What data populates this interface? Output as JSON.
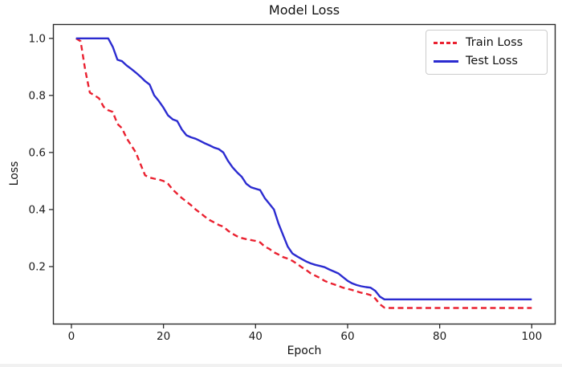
{
  "chart_data": {
    "type": "line",
    "title": "Model Loss",
    "xlabel": "Epoch",
    "ylabel": "Loss",
    "xlim": [
      -4,
      105
    ],
    "ylim": [
      0,
      1.05
    ],
    "x_ticks": [
      0,
      20,
      40,
      60,
      80,
      100
    ],
    "y_ticks": [
      0.2,
      0.4,
      0.6,
      0.8,
      1.0
    ],
    "grid": false,
    "legend_position": "upper right",
    "epochs": {
      "start": 1,
      "end": 100,
      "step": 1
    },
    "series": [
      {
        "name": "Train Loss",
        "color": "#ea2130",
        "style": "dashed",
        "values": [
          1.0,
          0.99,
          0.89,
          0.81,
          0.8,
          0.79,
          0.76,
          0.748,
          0.742,
          0.7,
          0.685,
          0.65,
          0.625,
          0.6,
          0.56,
          0.52,
          0.512,
          0.508,
          0.505,
          0.5,
          0.49,
          0.47,
          0.455,
          0.44,
          0.428,
          0.415,
          0.4,
          0.388,
          0.375,
          0.363,
          0.355,
          0.346,
          0.34,
          0.326,
          0.315,
          0.306,
          0.3,
          0.296,
          0.293,
          0.29,
          0.285,
          0.27,
          0.262,
          0.25,
          0.242,
          0.233,
          0.228,
          0.22,
          0.21,
          0.198,
          0.188,
          0.176,
          0.168,
          0.16,
          0.15,
          0.143,
          0.138,
          0.132,
          0.126,
          0.122,
          0.118,
          0.113,
          0.108,
          0.105,
          0.1,
          0.088,
          0.068,
          0.056,
          0.055,
          0.055,
          0.055,
          0.055,
          0.055,
          0.055,
          0.055,
          0.055,
          0.055,
          0.055,
          0.055,
          0.055,
          0.055,
          0.055,
          0.055,
          0.055,
          0.055,
          0.055,
          0.055,
          0.055,
          0.055,
          0.055,
          0.055,
          0.055,
          0.055,
          0.055,
          0.055,
          0.055,
          0.055,
          0.055,
          0.055,
          0.055
        ]
      },
      {
        "name": "Test Loss",
        "color": "#2b2bd0",
        "style": "solid",
        "values": [
          1.0,
          1.0,
          1.0,
          1.0,
          1.0,
          1.0,
          1.0,
          1.0,
          0.97,
          0.925,
          0.92,
          0.905,
          0.893,
          0.88,
          0.866,
          0.85,
          0.838,
          0.8,
          0.78,
          0.757,
          0.73,
          0.716,
          0.71,
          0.68,
          0.66,
          0.653,
          0.648,
          0.64,
          0.632,
          0.625,
          0.617,
          0.612,
          0.6,
          0.571,
          0.548,
          0.53,
          0.515,
          0.49,
          0.478,
          0.473,
          0.468,
          0.44,
          0.42,
          0.4,
          0.35,
          0.31,
          0.27,
          0.246,
          0.236,
          0.227,
          0.218,
          0.211,
          0.206,
          0.202,
          0.198,
          0.19,
          0.183,
          0.176,
          0.163,
          0.15,
          0.141,
          0.135,
          0.131,
          0.128,
          0.126,
          0.115,
          0.095,
          0.085,
          0.085,
          0.085,
          0.085,
          0.085,
          0.085,
          0.085,
          0.085,
          0.085,
          0.085,
          0.085,
          0.085,
          0.085,
          0.085,
          0.085,
          0.085,
          0.085,
          0.085,
          0.085,
          0.085,
          0.085,
          0.085,
          0.085,
          0.085,
          0.085,
          0.085,
          0.085,
          0.085,
          0.085,
          0.085,
          0.085,
          0.085,
          0.085
        ]
      }
    ]
  },
  "colors": {
    "axis": "#2b2b2b",
    "tick_text": "#1a1a1a",
    "background": "#ffffff",
    "legend_border": "#cccccc"
  }
}
